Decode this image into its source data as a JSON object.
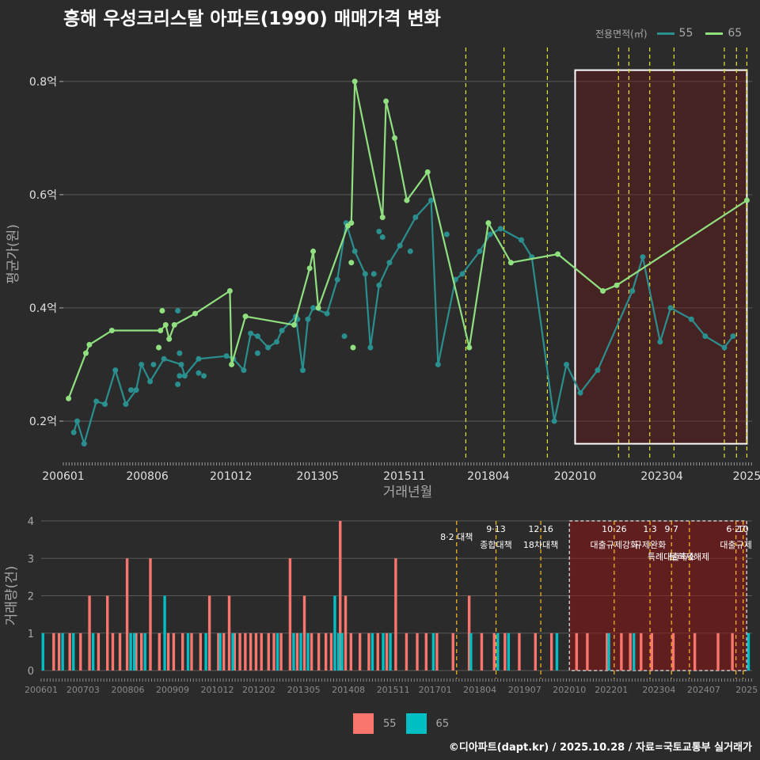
{
  "title": "흥해 우성크리스탈 아파트(1990) 매매가격 변화",
  "credit": "©디아파트(dapt.kr) / 2025.10.28 / 자료=국토교통부 실거래가",
  "legend_top": {
    "title": "전용면적(㎡)",
    "items": [
      {
        "label": "55",
        "color": "#2a8f8f"
      },
      {
        "label": "65",
        "color": "#90e080"
      }
    ]
  },
  "legend_bottom": {
    "items": [
      {
        "label": "55",
        "color": "#f8766d"
      },
      {
        "label": "65",
        "color": "#00bfc4"
      }
    ]
  },
  "chart_data": [
    {
      "type": "line",
      "title": "흥해 우성크리스탈 아파트(1990) 매매가격 변화",
      "xlabel": "거래년월",
      "ylabel": "평균가(원)",
      "xlim": [
        2006.0,
        2025.85
      ],
      "ylim": [
        0.13,
        0.86
      ],
      "yticks": [
        {
          "v": 0.2,
          "label": "0.2억"
        },
        {
          "v": 0.4,
          "label": "0.4억"
        },
        {
          "v": 0.6,
          "label": "0.6억"
        },
        {
          "v": 0.8,
          "label": "0.8억"
        }
      ],
      "xticks": [
        {
          "v": 2006.0,
          "label": "200601"
        },
        {
          "v": 2008.42,
          "label": "200806"
        },
        {
          "v": 2010.83,
          "label": "201012"
        },
        {
          "v": 2013.33,
          "label": "201305"
        },
        {
          "v": 2015.83,
          "label": "201511"
        },
        {
          "v": 2018.25,
          "label": "201804"
        },
        {
          "v": 2020.75,
          "label": "202010"
        },
        {
          "v": 2023.25,
          "label": "202304"
        },
        {
          "v": 2025.7,
          "label": "2025"
        }
      ],
      "highlight": {
        "x": [
          2020.75,
          2025.7
        ],
        "y": [
          0.16,
          0.82
        ]
      },
      "policy_lines": [
        2017.6,
        2018.7,
        2019.95,
        2022.0,
        2022.3,
        2022.9,
        2023.6,
        2025.05,
        2025.4,
        2025.7
      ],
      "series": [
        {
          "name": "55",
          "color": "#2a8f8f",
          "x": [
            2006.3,
            2006.4,
            2006.6,
            2006.95,
            2007.2,
            2007.5,
            2007.8,
            2008.1,
            2008.25,
            2008.5,
            2008.9,
            2009.4,
            2009.5,
            2009.9,
            2010.7,
            2010.9,
            2011.2,
            2011.4,
            2011.6,
            2011.9,
            2012.15,
            2012.3,
            2012.7,
            2012.9,
            2013.05,
            2013.2,
            2013.6,
            2013.9,
            2014.15,
            2014.4,
            2014.7,
            2014.85,
            2015.1,
            2015.4,
            2015.7,
            2016.15,
            2016.6,
            2016.8,
            2017.3,
            2017.5,
            2018.0,
            2018.3,
            2018.6,
            2019.2,
            2019.5,
            2020.15,
            2020.5,
            2020.9,
            2021.4,
            2022.4,
            2022.7,
            2023.2,
            2023.5,
            2024.1,
            2024.5,
            2025.05,
            2025.3
          ],
          "y": [
            0.18,
            0.2,
            0.16,
            0.235,
            0.23,
            0.29,
            0.23,
            0.255,
            0.3,
            0.27,
            0.31,
            0.3,
            0.28,
            0.31,
            0.315,
            0.31,
            0.29,
            0.355,
            0.35,
            0.33,
            0.34,
            0.36,
            0.385,
            0.29,
            0.38,
            0.4,
            0.39,
            0.45,
            0.55,
            0.5,
            0.46,
            0.33,
            0.44,
            0.48,
            0.51,
            0.56,
            0.59,
            0.3,
            0.45,
            0.46,
            0.5,
            0.53,
            0.54,
            0.52,
            0.49,
            0.2,
            0.3,
            0.25,
            0.29,
            0.43,
            0.49,
            0.34,
            0.4,
            0.38,
            0.35,
            0.33,
            0.35
          ]
        },
        {
          "name": "65",
          "color": "#90e080",
          "x": [
            2006.15,
            2006.65,
            2006.75,
            2007.4,
            2008.8,
            2008.95,
            2009.05,
            2009.2,
            2009.8,
            2010.8,
            2010.85,
            2011.25,
            2012.65,
            2013.1,
            2013.2,
            2013.35,
            2014.2,
            2014.3,
            2014.4,
            2015.2,
            2015.3,
            2015.55,
            2015.9,
            2016.5,
            2017.7,
            2018.25,
            2018.9,
            2020.25,
            2021.55,
            2021.95,
            2025.7
          ],
          "y": [
            0.24,
            0.32,
            0.335,
            0.36,
            0.36,
            0.37,
            0.345,
            0.37,
            0.39,
            0.43,
            0.3,
            0.385,
            0.37,
            0.47,
            0.5,
            0.4,
            0.545,
            0.55,
            0.8,
            0.56,
            0.765,
            0.7,
            0.59,
            0.64,
            0.33,
            0.55,
            0.48,
            0.495,
            0.43,
            0.44,
            0.59
          ]
        }
      ],
      "extra_points": [
        {
          "series": "55",
          "x": 2007.95,
          "y": 0.255
        },
        {
          "series": "55",
          "x": 2008.6,
          "y": 0.3
        },
        {
          "series": "55",
          "x": 2009.3,
          "y": 0.395
        },
        {
          "series": "55",
          "x": 2009.3,
          "y": 0.265
        },
        {
          "series": "55",
          "x": 2009.35,
          "y": 0.28
        },
        {
          "series": "55",
          "x": 2009.35,
          "y": 0.32
        },
        {
          "series": "55",
          "x": 2009.9,
          "y": 0.285
        },
        {
          "series": "55",
          "x": 2010.05,
          "y": 0.28
        },
        {
          "series": "55",
          "x": 2011.6,
          "y": 0.32
        },
        {
          "series": "55",
          "x": 2012.75,
          "y": 0.38
        },
        {
          "series": "55",
          "x": 2014.1,
          "y": 0.35
        },
        {
          "series": "55",
          "x": 2014.95,
          "y": 0.46
        },
        {
          "series": "55",
          "x": 2015.1,
          "y": 0.535
        },
        {
          "series": "55",
          "x": 2015.2,
          "y": 0.525
        },
        {
          "series": "55",
          "x": 2016.0,
          "y": 0.5
        },
        {
          "series": "55",
          "x": 2017.05,
          "y": 0.53
        },
        {
          "series": "65",
          "x": 2008.75,
          "y": 0.33
        },
        {
          "series": "65",
          "x": 2008.85,
          "y": 0.395
        },
        {
          "series": "65",
          "x": 2014.3,
          "y": 0.48
        },
        {
          "series": "65",
          "x": 2014.35,
          "y": 0.33
        }
      ]
    },
    {
      "type": "bar",
      "xlabel": "",
      "ylabel": "거래량(건)",
      "xlim": [
        2006.0,
        2025.85
      ],
      "ylim": [
        0,
        4
      ],
      "yticks": [
        0,
        1,
        2,
        3,
        4
      ],
      "xticks": [
        {
          "v": 2006.0,
          "label": "200601"
        },
        {
          "v": 2007.17,
          "label": "200703"
        },
        {
          "v": 2008.42,
          "label": "200806"
        },
        {
          "v": 2009.67,
          "label": "200909"
        },
        {
          "v": 2010.92,
          "label": "201012"
        },
        {
          "v": 2012.08,
          "label": "201202"
        },
        {
          "v": 2013.33,
          "label": "201305"
        },
        {
          "v": 2014.58,
          "label": "201408"
        },
        {
          "v": 2015.83,
          "label": "201511"
        },
        {
          "v": 2017.0,
          "label": "201701"
        },
        {
          "v": 2018.25,
          "label": "201804"
        },
        {
          "v": 2019.5,
          "label": "201907"
        },
        {
          "v": 2020.75,
          "label": "202010"
        },
        {
          "v": 2021.92,
          "label": "202201"
        },
        {
          "v": 2023.25,
          "label": "202304"
        },
        {
          "v": 2024.5,
          "label": "202407"
        },
        {
          "v": 2025.7,
          "label": "2025"
        }
      ],
      "highlight": {
        "x": [
          2020.75,
          2025.7
        ],
        "y": [
          0,
          4
        ]
      },
      "annotations": [
        {
          "x": 2017.6,
          "date": "",
          "text": "8·2 대책"
        },
        {
          "x": 2018.7,
          "date": "9·13",
          "text": "종합대책"
        },
        {
          "x": 2019.95,
          "date": "12·16",
          "text": "18차대책"
        },
        {
          "x": 2022.0,
          "date": "10·26",
          "text": "대출규제강화"
        },
        {
          "x": 2023.0,
          "date": "1·3",
          "text": "규제완화"
        },
        {
          "x": 2023.6,
          "date": "9·7",
          "text": "특례대출축소"
        },
        {
          "x": 2024.1,
          "date": "",
          "text": "토허제해제"
        },
        {
          "x": 2025.4,
          "date": "6·27",
          "text": "대출규제"
        },
        {
          "x": 2025.6,
          "date": "10",
          "text": ""
        }
      ],
      "series": [
        {
          "name": "55",
          "color": "#f8766d",
          "x": [
            2006.35,
            2006.5,
            2006.8,
            2007.1,
            2007.35,
            2007.6,
            2007.85,
            2008.0,
            2008.2,
            2008.4,
            2008.65,
            2008.8,
            2009.05,
            2009.3,
            2009.55,
            2009.7,
            2009.95,
            2010.2,
            2010.45,
            2010.7,
            2010.95,
            2011.1,
            2011.25,
            2011.4,
            2011.55,
            2011.7,
            2011.85,
            2012.0,
            2012.15,
            2012.35,
            2012.5,
            2012.7,
            2012.95,
            2013.15,
            2013.35,
            2013.55,
            2013.75,
            2013.95,
            2014.1,
            2014.35,
            2014.5,
            2014.65,
            2014.9,
            2015.15,
            2015.4,
            2015.65,
            2015.9,
            2016.2,
            2016.5,
            2016.75,
            2017.05,
            2017.5,
            2017.95,
            2018.3,
            2018.65,
            2018.95,
            2019.35,
            2019.8,
            2020.25,
            2020.95,
            2021.25,
            2021.8,
            2022.2,
            2022.45,
            2022.75,
            2023.05,
            2023.65,
            2024.25,
            2024.9,
            2025.3
          ],
          "y": [
            1,
            1,
            1,
            1,
            2,
            1,
            2,
            1,
            1,
            3,
            1,
            1,
            3,
            1,
            1,
            1,
            1,
            1,
            1,
            2,
            1,
            1,
            2,
            1,
            1,
            1,
            1,
            1,
            1,
            1,
            1,
            1,
            3,
            1,
            2,
            1,
            1,
            1,
            1,
            4,
            2,
            1,
            1,
            1,
            1,
            1,
            3,
            1,
            1,
            1,
            1,
            1,
            2,
            1,
            1,
            1,
            1,
            1,
            1,
            1,
            1,
            1,
            1,
            1,
            1,
            1,
            1,
            1,
            1,
            1
          ]
        },
        {
          "name": "65",
          "color": "#00bfc4",
          "x": [
            2006.05,
            2006.6,
            2006.9,
            2007.45,
            2008.5,
            2008.6,
            2008.9,
            2009.45,
            2010.1,
            2010.6,
            2011.0,
            2011.35,
            2012.6,
            2013.05,
            2013.25,
            2013.45,
            2014.2,
            2014.3,
            2014.4,
            2015.25,
            2015.55,
            2015.75,
            2016.95,
            2018.0,
            2018.75,
            2019.05,
            2020.4,
            2021.85,
            2022.55,
            2025.75
          ],
          "y": [
            1,
            1,
            1,
            1,
            1,
            1,
            1,
            2,
            1,
            1,
            1,
            1,
            1,
            1,
            1,
            1,
            2,
            1,
            1,
            1,
            1,
            1,
            1,
            1,
            1,
            1,
            1,
            1,
            1,
            1
          ]
        }
      ]
    }
  ]
}
